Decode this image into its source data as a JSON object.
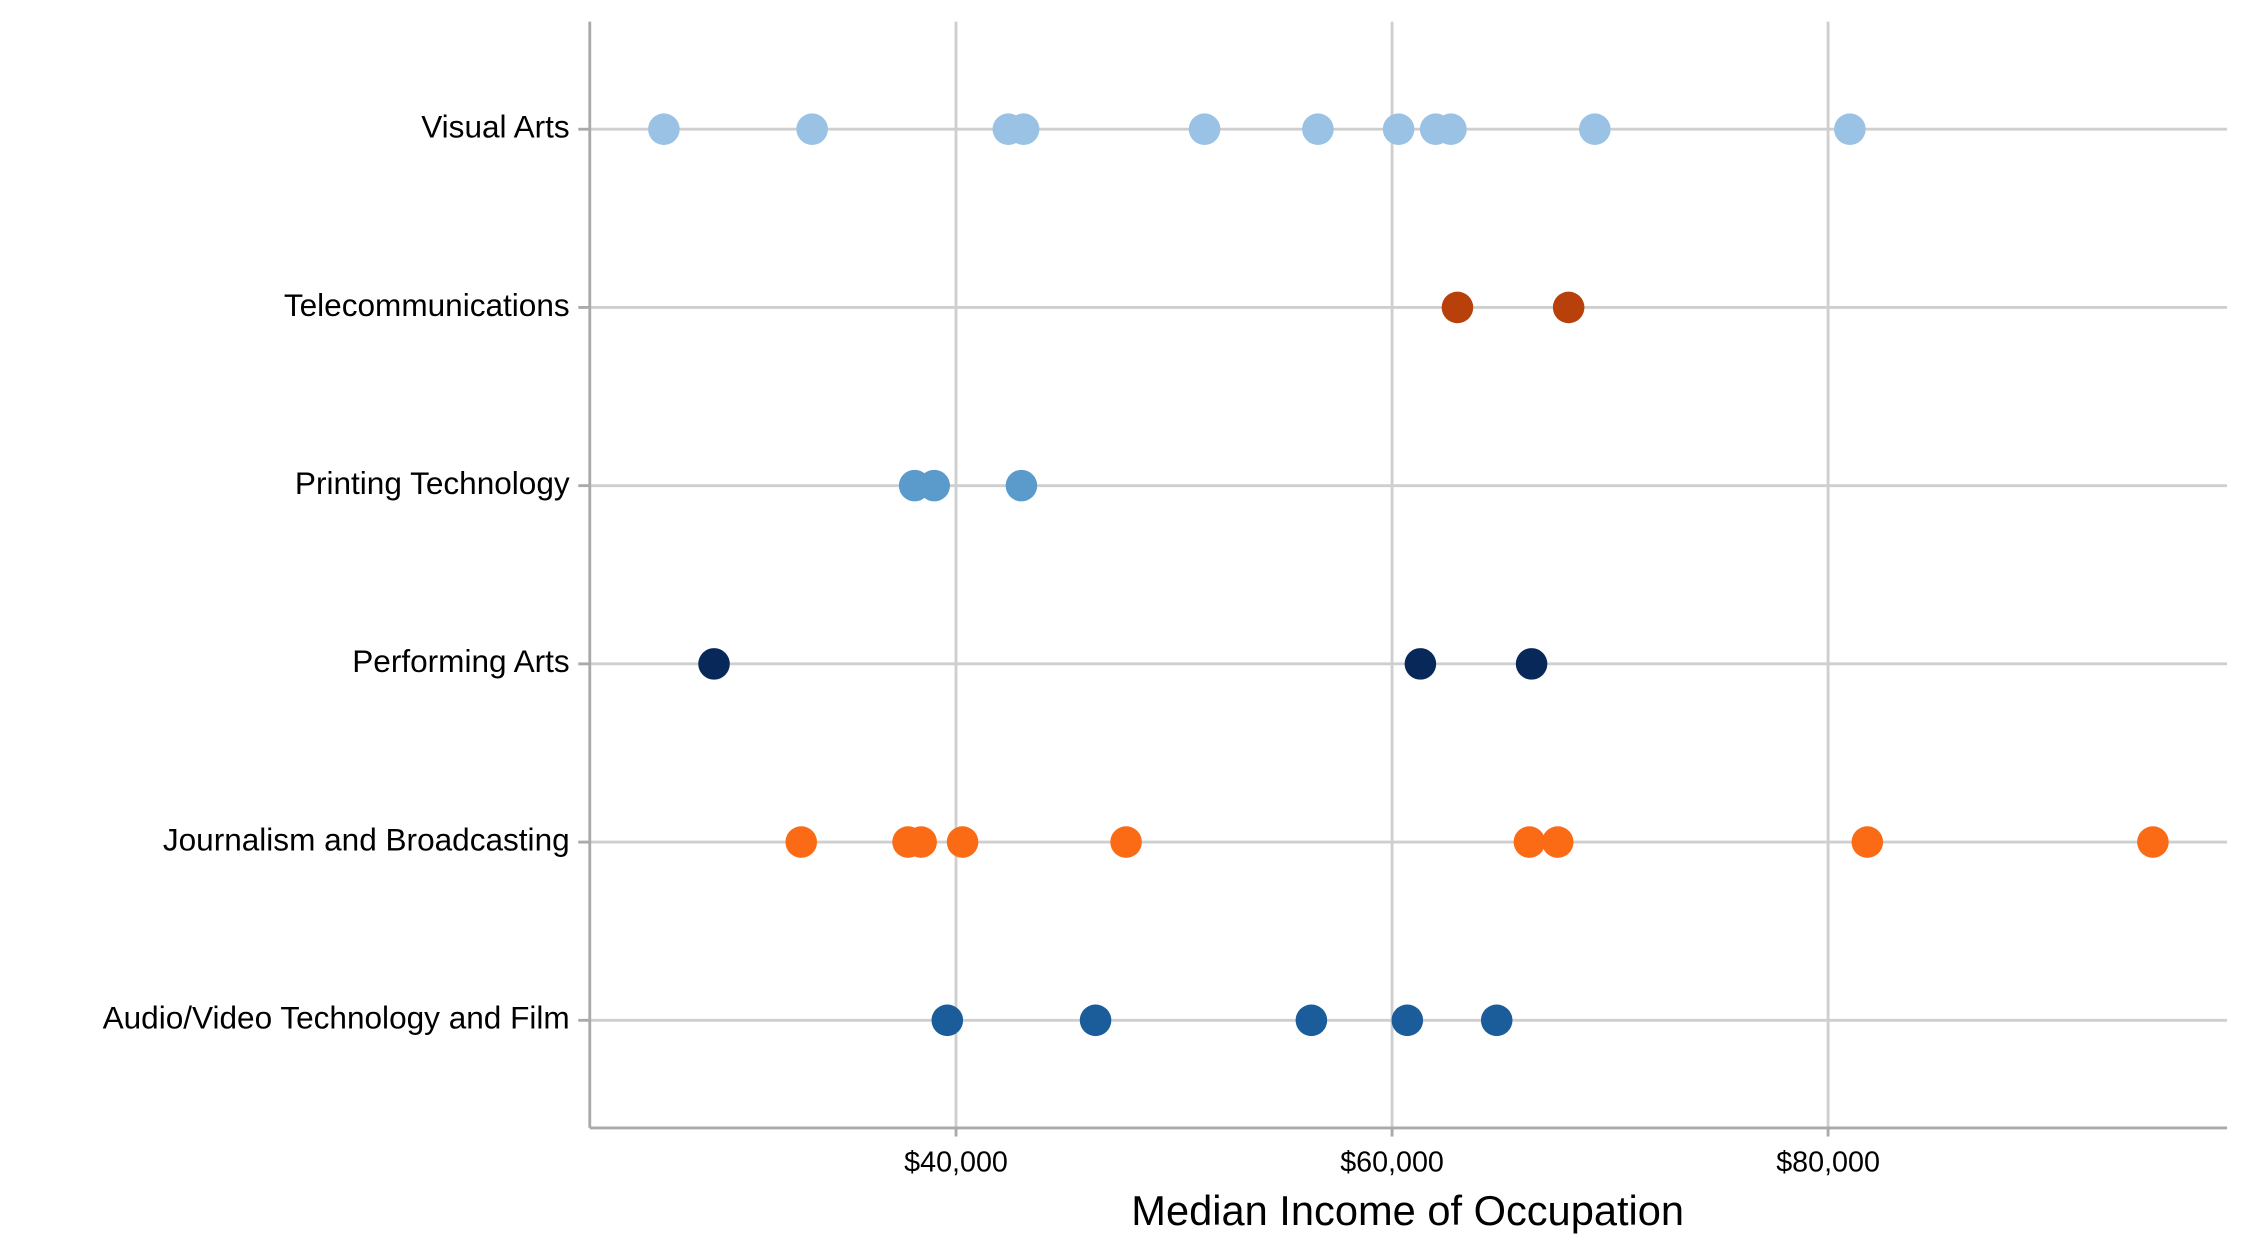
{
  "chart_data": {
    "type": "dot",
    "xlabel": "Median Income of Occupation",
    "xlim": [
      23200,
      98300
    ],
    "xticks": [
      {
        "value": 40000,
        "label": "$40,000"
      },
      {
        "value": 60000,
        "label": "$60,000"
      },
      {
        "value": 80000,
        "label": "$80,000"
      }
    ],
    "grid": true,
    "series": [
      {
        "name": "Audio/Video Technology and Film",
        "color": "#1b5c9a",
        "values": [
          39600,
          46400,
          56300,
          60700,
          64800
        ]
      },
      {
        "name": "Journalism and Broadcasting",
        "color": "#fb6a15",
        "values": [
          32900,
          37800,
          38400,
          40300,
          47800,
          66300,
          67600,
          81800,
          94900
        ]
      },
      {
        "name": "Performing Arts",
        "color": "#08285a",
        "values": [
          28900,
          61300,
          66400
        ]
      },
      {
        "name": "Printing Technology",
        "color": "#5b9bcb",
        "values": [
          38100,
          39000,
          43000
        ]
      },
      {
        "name": "Telecommunications",
        "color": "#b8400a",
        "values": [
          63000,
          68100
        ]
      },
      {
        "name": "Visual Arts",
        "color": "#9ac2e4",
        "values": [
          26600,
          33400,
          42400,
          43100,
          51400,
          56600,
          60300,
          62000,
          62700,
          69300,
          81000
        ]
      }
    ]
  }
}
